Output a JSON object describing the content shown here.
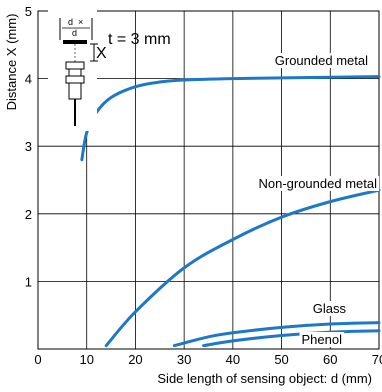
{
  "chart_data": {
    "type": "line",
    "xlabel": "Side length of sensing object: d (mm)",
    "ylabel": "Distance X (mm)",
    "xlim": [
      0,
      70
    ],
    "ylim": [
      0,
      5
    ],
    "xticks": [
      0,
      10,
      20,
      30,
      40,
      50,
      60,
      70
    ],
    "yticks": [
      1,
      2,
      3,
      4,
      5
    ],
    "grid": true,
    "annotation": "t = 3 mm",
    "series": [
      {
        "name": "Grounded metal",
        "x": [
          9,
          10,
          12,
          15,
          20,
          25,
          30,
          40,
          50,
          60,
          70
        ],
        "y": [
          2.8,
          3.2,
          3.5,
          3.72,
          3.88,
          3.95,
          3.98,
          4.0,
          4.01,
          4.02,
          4.03
        ]
      },
      {
        "name": "Non-grounded metal",
        "x": [
          14,
          20,
          30,
          40,
          50,
          60,
          70
        ],
        "y": [
          0.05,
          0.55,
          1.2,
          1.62,
          1.95,
          2.18,
          2.35
        ]
      },
      {
        "name": "Glass",
        "x": [
          28,
          35,
          40,
          50,
          60,
          70
        ],
        "y": [
          0.05,
          0.18,
          0.24,
          0.32,
          0.37,
          0.39
        ]
      },
      {
        "name": "Phenol",
        "x": [
          34,
          40,
          50,
          60,
          70
        ],
        "y": [
          0.05,
          0.12,
          0.2,
          0.25,
          0.27
        ]
      }
    ]
  },
  "inset": {
    "d_label": "d",
    "x_label": "X",
    "icon": "proximity-sensor-diagram-icon"
  },
  "colors": {
    "curve": "#1e78c8",
    "grid": "#000000"
  }
}
